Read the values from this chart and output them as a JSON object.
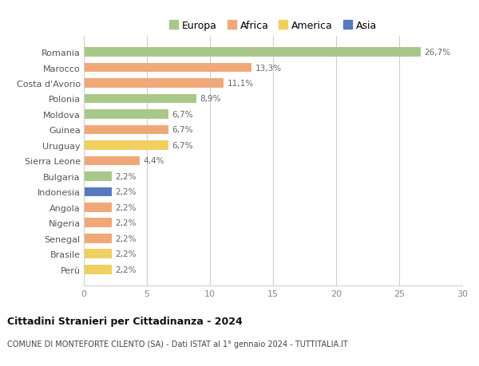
{
  "countries": [
    "Romania",
    "Marocco",
    "Costa d'Avorio",
    "Polonia",
    "Moldova",
    "Guinea",
    "Uruguay",
    "Sierra Leone",
    "Bulgaria",
    "Indonesia",
    "Angola",
    "Nigeria",
    "Senegal",
    "Brasile",
    "Perù"
  ],
  "values": [
    26.7,
    13.3,
    11.1,
    8.9,
    6.7,
    6.7,
    6.7,
    4.4,
    2.2,
    2.2,
    2.2,
    2.2,
    2.2,
    2.2,
    2.2
  ],
  "labels": [
    "26,7%",
    "13,3%",
    "11,1%",
    "8,9%",
    "6,7%",
    "6,7%",
    "6,7%",
    "4,4%",
    "2,2%",
    "2,2%",
    "2,2%",
    "2,2%",
    "2,2%",
    "2,2%",
    "2,2%"
  ],
  "continents": [
    "Europa",
    "Africa",
    "Africa",
    "Europa",
    "Europa",
    "Africa",
    "America",
    "Africa",
    "Europa",
    "Asia",
    "Africa",
    "Africa",
    "Africa",
    "America",
    "America"
  ],
  "colors": {
    "Europa": "#a8c88a",
    "Africa": "#f0a878",
    "America": "#f0d060",
    "Asia": "#5878c0"
  },
  "legend_order": [
    "Europa",
    "Africa",
    "America",
    "Asia"
  ],
  "title1": "Cittadini Stranieri per Cittadinanza - 2024",
  "title2": "COMUNE DI MONTEFORTE CILENTO (SA) - Dati ISTAT al 1° gennaio 2024 - TUTTITALIA.IT",
  "xlim": [
    0,
    30
  ],
  "xticks": [
    0,
    5,
    10,
    15,
    20,
    25,
    30
  ],
  "bg_color": "#ffffff",
  "grid_color": "#d0d0d0"
}
